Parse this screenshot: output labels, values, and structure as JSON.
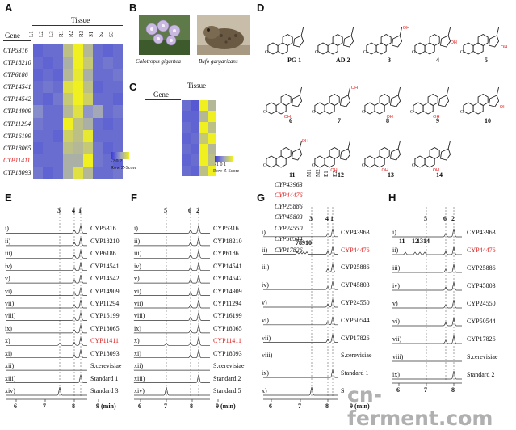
{
  "panels": {
    "A": "A",
    "B": "B",
    "C": "C",
    "D": "D",
    "E": "E",
    "F": "F",
    "G": "G",
    "H": "H"
  },
  "panelA": {
    "tissue_title": "Tissue",
    "gene_header": "Gene",
    "columns": [
      "L1",
      "L2",
      "L3",
      "R1",
      "R2",
      "R3",
      "S1",
      "S2",
      "S3"
    ],
    "genes": [
      "CYP5316",
      "CYP18210",
      "CYP6186",
      "CYP14541",
      "CYP14542",
      "CYP14909",
      "CYP11294",
      "CYP16199",
      "CYP18065",
      "CYP11411",
      "CYP18093"
    ],
    "highlight_gene": "CYP11411",
    "legend_ticks": "-2  0  2",
    "legend_label": "Row Z-Score"
  },
  "panelB": {
    "caption1": "Calotropis gigantea",
    "caption2": "Bufo gargarizans"
  },
  "panelC": {
    "tissue_title": "Tissue",
    "gene_header": "Gene",
    "columns": [
      "M1",
      "M2",
      "E1",
      "E2"
    ],
    "genes": [
      "CYP43963",
      "CYP44476",
      "CYP25886",
      "CYP45803",
      "CYP24550",
      "CYP50544",
      "CYP17826"
    ],
    "highlight_gene": "CYP44476",
    "legend_ticks": "-1 0 1",
    "legend_label": "Row Z-Score"
  },
  "panelD": {
    "labels": [
      "PG 1",
      "AD 2",
      "3",
      "4",
      "5",
      "6",
      "7",
      "8",
      "9",
      "10",
      "11",
      "12",
      "13",
      "14"
    ],
    "colors": {
      "structure": "#222222",
      "hydroxyl": "#e02020"
    }
  },
  "panelE": {
    "peak_labels": [
      "3",
      "4",
      "1"
    ],
    "rows": [
      {
        "idx": "i)",
        "name": "CYP5316"
      },
      {
        "idx": "ii)",
        "name": "CYP18210"
      },
      {
        "idx": "iii)",
        "name": "CYP6186"
      },
      {
        "idx": "iv)",
        "name": "CYP14541"
      },
      {
        "idx": "v)",
        "name": "CYP14542"
      },
      {
        "idx": "vi)",
        "name": "CYP14909"
      },
      {
        "idx": "vii)",
        "name": "CYP11294"
      },
      {
        "idx": "viii)",
        "name": "CYP16199"
      },
      {
        "idx": "ix)",
        "name": "CYP18065"
      },
      {
        "idx": "x)",
        "name": "CYP11411"
      },
      {
        "idx": "xi)",
        "name": "CYP18093"
      },
      {
        "idx": "xii)",
        "name": "S.cerevisiae"
      },
      {
        "idx": "xiii)",
        "name": "Standard 1"
      },
      {
        "idx": "xiv)",
        "name": "Standard 3"
      }
    ],
    "x_ticks": [
      "6",
      "7",
      "8",
      "9 (min)"
    ]
  },
  "panelF": {
    "peak_labels": [
      "5",
      "6",
      "2"
    ],
    "rows": [
      {
        "idx": "i)",
        "name": "CYP5316"
      },
      {
        "idx": "ii)",
        "name": "CYP18210"
      },
      {
        "idx": "iii)",
        "name": "CYP6186"
      },
      {
        "idx": "iv)",
        "name": "CYP14541"
      },
      {
        "idx": "v)",
        "name": "CYP14542"
      },
      {
        "idx": "vi)",
        "name": "CYP14909"
      },
      {
        "idx": "vii)",
        "name": "CYP11294"
      },
      {
        "idx": "viii)",
        "name": "CYP16199"
      },
      {
        "idx": "ix)",
        "name": "CYP18065"
      },
      {
        "idx": "x)",
        "name": "CYP11411"
      },
      {
        "idx": "xi)",
        "name": "CYP18093"
      },
      {
        "idx": "xii)",
        "name": "S.cerevisiae"
      },
      {
        "idx": "xiii)",
        "name": "Standard 2"
      },
      {
        "idx": "xiv)",
        "name": "Standard 5"
      }
    ],
    "x_ticks": [
      "6",
      "7",
      "8",
      "9 (min)"
    ]
  },
  "panelG": {
    "peak_labels": [
      "3",
      "4",
      "1"
    ],
    "group_label": "78910",
    "rows": [
      {
        "idx": "i)",
        "name": "CYP43963"
      },
      {
        "idx": "ii)",
        "name": "CYP44476"
      },
      {
        "idx": "iii)",
        "name": "CYP25886"
      },
      {
        "idx": "iv)",
        "name": "CYP45803"
      },
      {
        "idx": "v)",
        "name": "CYP24550"
      },
      {
        "idx": "vi)",
        "name": "CYP50544"
      },
      {
        "idx": "vii)",
        "name": "CYP17826"
      },
      {
        "idx": "viii)",
        "name": "S.cerevisiae"
      },
      {
        "idx": "ix)",
        "name": "Standard 1"
      },
      {
        "idx": "x)",
        "name": "S"
      }
    ],
    "x_ticks": [
      "6",
      "7",
      "8",
      "9 (min)"
    ]
  },
  "panelH": {
    "peak_labels": [
      "5",
      "6",
      "2"
    ],
    "group_labels": [
      "11",
      "12",
      "13",
      "14"
    ],
    "rows": [
      {
        "idx": "i)",
        "name": "CYP43963"
      },
      {
        "idx": "ii)",
        "name": "CYP44476"
      },
      {
        "idx": "iii)",
        "name": "CYP25886"
      },
      {
        "idx": "iv)",
        "name": "CYP45803"
      },
      {
        "idx": "v)",
        "name": "CYP24550"
      },
      {
        "idx": "vi)",
        "name": "CYP50544"
      },
      {
        "idx": "vii)",
        "name": "CYP17826"
      },
      {
        "idx": "viii)",
        "name": "S.cerevisiae"
      },
      {
        "idx": "ix)",
        "name": "Standard 2"
      }
    ],
    "x_ticks": [
      "6",
      "7",
      "8"
    ]
  },
  "watermark": "cn-ferment.com"
}
